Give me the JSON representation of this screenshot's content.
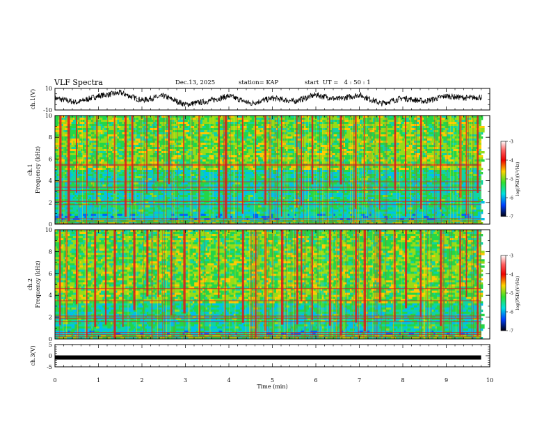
{
  "header": {
    "title": "VLF Spectra",
    "date": "Dec.13, 2025",
    "station": "station= KAP",
    "start": "start  UT =   4 : 50 : 1"
  },
  "chart_data": [
    {
      "type": "line",
      "panel": "channel-1 waveform",
      "ylabel": "ch.1(V)",
      "ylim": [
        -10,
        10
      ],
      "yticks": [
        "10",
        "-10"
      ],
      "xlim": [
        0,
        10
      ],
      "series": [
        {
          "name": "ch.1",
          "x": [
            0,
            0.5,
            1,
            1.5,
            2,
            2.5,
            3,
            3.5,
            4,
            4.5,
            5,
            5.5,
            6,
            6.5,
            7,
            7.5,
            8,
            8.5,
            9,
            9.5,
            9.8
          ],
          "values": [
            1,
            -3,
            3,
            6,
            -1,
            3,
            -5,
            -2,
            3,
            -4,
            1,
            -2,
            4,
            0,
            4,
            -4,
            1,
            -2,
            3,
            1,
            2
          ]
        }
      ]
    },
    {
      "type": "heatmap",
      "panel": "channel-1 spectrogram",
      "ylabel": "ch.1\nFrequency (kHz)",
      "ylim": [
        0,
        10
      ],
      "yticks": [
        "0",
        "2",
        "4",
        "6",
        "8",
        "10"
      ],
      "xlim": [
        0,
        9.8
      ],
      "colorbar": {
        "label": "log(PSD)(V²/Hz)",
        "range": [
          -7,
          -3
        ],
        "ticks": [
          "-3",
          "-4",
          "-5",
          "-6",
          "-7"
        ]
      },
      "emission_lines_khz": [
        0.1,
        0.3,
        0.5,
        1.8,
        2.1,
        3.1,
        3.4,
        3.9,
        5.4,
        5.5
      ],
      "sferic_times_min": [
        0.1,
        0.3,
        0.48,
        0.72,
        0.95,
        1.35,
        1.6,
        1.75,
        2.1,
        2.35,
        2.6,
        2.95,
        3.3,
        3.75,
        3.9,
        4.3,
        4.6,
        4.82,
        5.2,
        5.55,
        5.65,
        5.9,
        6.3,
        6.55,
        6.9,
        7.1,
        7.45,
        7.8,
        8.05,
        8.4,
        8.85,
        9.3,
        9.45,
        9.7
      ]
    },
    {
      "type": "heatmap",
      "panel": "channel-2 spectrogram",
      "ylabel": "ch.2\nFrequency (kHz)",
      "ylim": [
        0,
        10
      ],
      "yticks": [
        "0",
        "2",
        "4",
        "6",
        "8",
        "10"
      ],
      "xlim": [
        0,
        9.8
      ],
      "colorbar": {
        "label": "log(PSD)(V²/Hz)",
        "range": [
          -7,
          -3
        ],
        "ticks": [
          "-3",
          "-4",
          "-5",
          "-6",
          "-7"
        ]
      },
      "emission_lines_khz": [
        0.2,
        0.4,
        0.6,
        1.6,
        1.9,
        2.1,
        3.5,
        4.6
      ],
      "sferic_times_min": [
        0.1,
        0.25,
        0.48,
        0.72,
        0.9,
        1.15,
        1.35,
        1.55,
        1.8,
        2.1,
        2.35,
        2.65,
        2.95,
        3.3,
        3.75,
        3.9,
        4.3,
        4.6,
        4.82,
        5.2,
        5.55,
        5.65,
        5.9,
        6.3,
        6.55,
        6.9,
        7.1,
        7.45,
        7.8,
        8.05,
        8.4,
        8.85,
        9.3,
        9.45,
        9.7
      ]
    },
    {
      "type": "line",
      "panel": "channel-3 waveform",
      "ylabel": "ch.3(V)",
      "ylim": [
        -5,
        5
      ],
      "yticks": [
        "5",
        "0",
        "-5"
      ],
      "xlim": [
        0,
        10
      ],
      "xlabel": "Time  (min)",
      "xticks": [
        "0",
        "1",
        "2",
        "3",
        "4",
        "5",
        "6",
        "7",
        "8",
        "9",
        "10"
      ],
      "series": [
        {
          "name": "ch.3",
          "x": [
            0,
            9.8
          ],
          "values": [
            -0.8,
            -0.8
          ]
        }
      ]
    }
  ]
}
